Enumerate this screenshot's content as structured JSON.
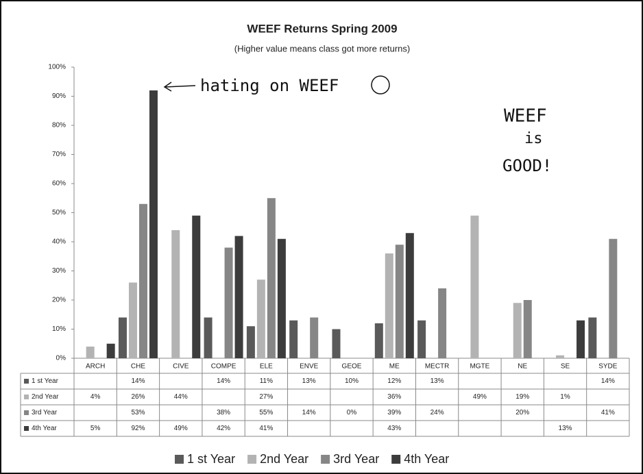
{
  "chart_data": {
    "type": "bar",
    "title": "WEEF Returns Spring 2009",
    "subtitle": "(Higher value means class got more returns)",
    "annotations": [
      "hating on WEEF",
      "WEEF",
      "is",
      "GOOD!"
    ],
    "categories": [
      "ARCH",
      "CHE",
      "CIVE",
      "COMPE",
      "ELE",
      "ENVE",
      "GEOE",
      "ME",
      "MECTR",
      "MGTE",
      "NE",
      "SE",
      "SYDE"
    ],
    "series": [
      {
        "name": "1 st Year",
        "color": "#5a5a5a",
        "values": [
          null,
          14,
          null,
          14,
          11,
          13,
          10,
          12,
          13,
          null,
          null,
          null,
          14
        ],
        "value_labels": [
          null,
          "14%",
          null,
          "14%",
          "11%",
          "13%",
          "10%",
          "12%",
          "13%",
          null,
          null,
          null,
          "14%"
        ]
      },
      {
        "name": "2nd Year",
        "color": "#b3b3b3",
        "values": [
          4,
          26,
          44,
          null,
          27,
          null,
          null,
          36,
          null,
          49,
          19,
          1,
          null
        ],
        "value_labels": [
          "4%",
          "26%",
          "44%",
          null,
          "27%",
          null,
          null,
          "36%",
          null,
          "49%",
          "19%",
          "1%",
          null
        ]
      },
      {
        "name": "3rd Year",
        "color": "#868686",
        "values": [
          null,
          53,
          null,
          38,
          55,
          14,
          0,
          39,
          24,
          null,
          20,
          null,
          41
        ],
        "value_labels": [
          null,
          "53%",
          null,
          "38%",
          "55%",
          "14%",
          "0%",
          "39%",
          "24%",
          null,
          "20%",
          null,
          "41%"
        ]
      },
      {
        "name": "4th Year",
        "color": "#3c3c3c",
        "values": [
          5,
          92,
          49,
          42,
          41,
          null,
          null,
          43,
          null,
          null,
          null,
          13,
          null
        ],
        "value_labels": [
          "5%",
          "92%",
          "49%",
          "42%",
          "41%",
          null,
          null,
          "43%",
          null,
          null,
          null,
          "13%",
          null
        ]
      }
    ],
    "ylim": [
      0,
      100
    ],
    "yticks": [
      {
        "value": 0,
        "label": "0%"
      },
      {
        "value": 10,
        "label": "10%"
      },
      {
        "value": 20,
        "label": "20%"
      },
      {
        "value": 30,
        "label": "30%"
      },
      {
        "value": 40,
        "label": "40%"
      },
      {
        "value": 50,
        "label": "50%"
      },
      {
        "value": 60,
        "label": "60%"
      },
      {
        "value": 70,
        "label": "70%"
      },
      {
        "value": 80,
        "label": "80%"
      },
      {
        "value": 90,
        "label": "90%"
      },
      {
        "value": 100,
        "label": "100%"
      }
    ],
    "grid": false
  }
}
